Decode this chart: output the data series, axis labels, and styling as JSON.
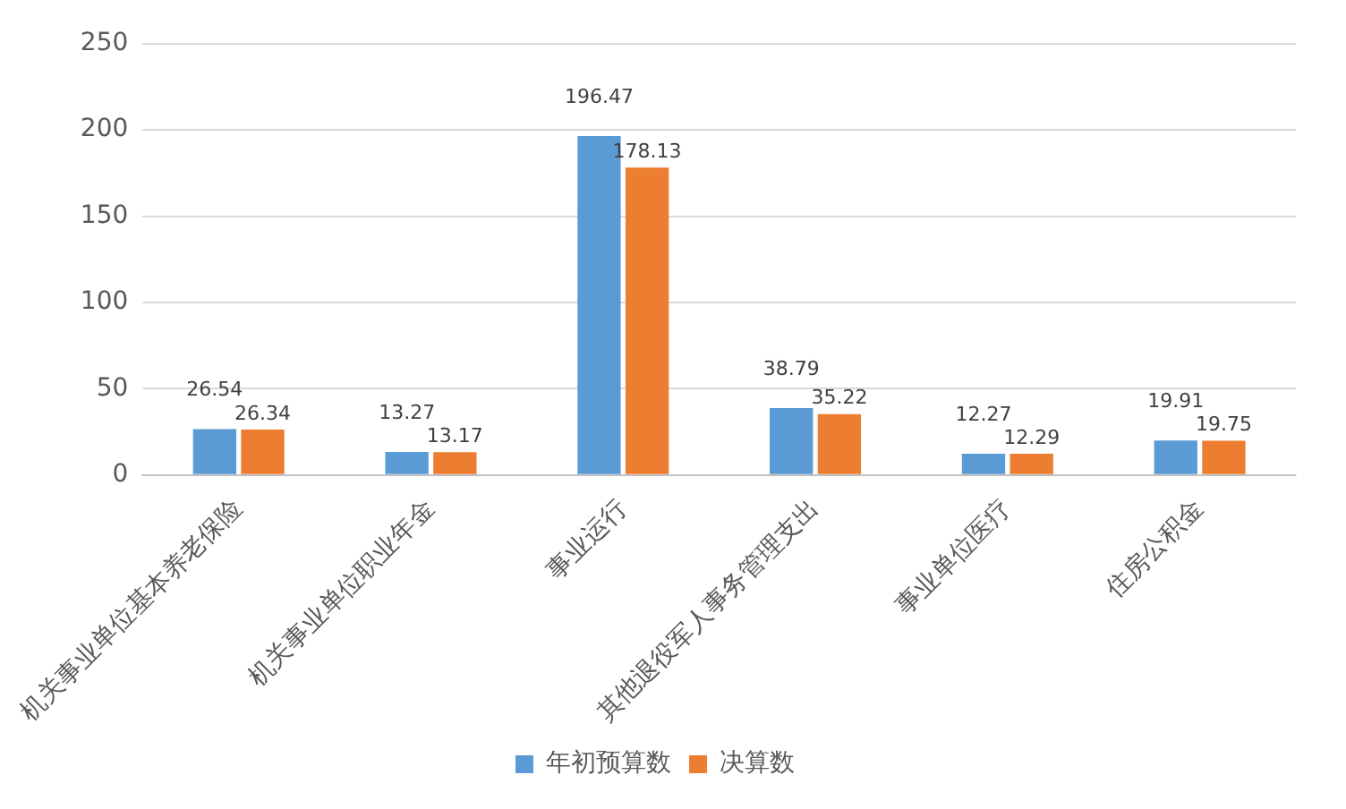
{
  "chart_data": {
    "type": "bar",
    "categories": [
      "机关事业单位基本养老保险",
      "机关事业单位职业年金",
      "事业运行",
      "其他退役军人事务管理支出",
      "事业单位医疗",
      "住房公积金"
    ],
    "series": [
      {
        "name": "年初预算数",
        "color": "#5b9bd5",
        "values": [
          26.54,
          13.27,
          196.47,
          38.79,
          12.27,
          19.91
        ]
      },
      {
        "name": "决算数",
        "color": "#ed7d31",
        "values": [
          26.34,
          13.17,
          178.13,
          35.22,
          12.29,
          19.75
        ]
      }
    ],
    "ylim": [
      0,
      250
    ],
    "yticks": [
      0,
      50,
      100,
      150,
      200,
      250
    ],
    "grid": "y",
    "legend": "bottom",
    "data_labels": true
  }
}
